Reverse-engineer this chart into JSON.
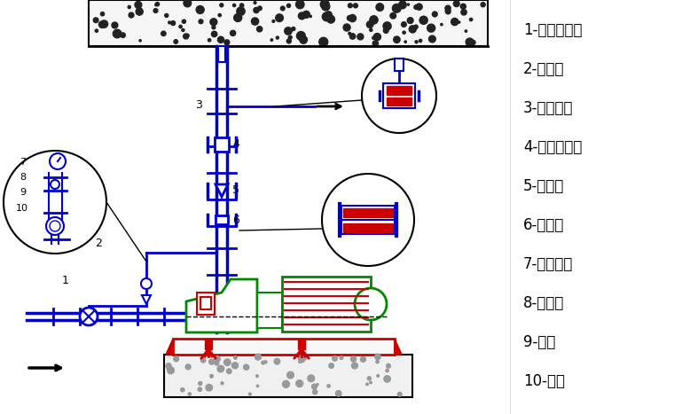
{
  "legend_items": [
    "1-蝶阀或闸阀",
    "2-压力表",
    "3-弹性吊架",
    "4-蝶阀或闸阀",
    "5-止回阀",
    "6-软接头",
    "7-压力表盘",
    "8-旋塞阀",
    "9-钢管",
    "10-接头"
  ],
  "bg_color": "#ffffff",
  "blue": "#0000cc",
  "green": "#008800",
  "red": "#cc0000",
  "black": "#000000",
  "darkgray": "#555555",
  "concrete_color": "#f0f0f0"
}
